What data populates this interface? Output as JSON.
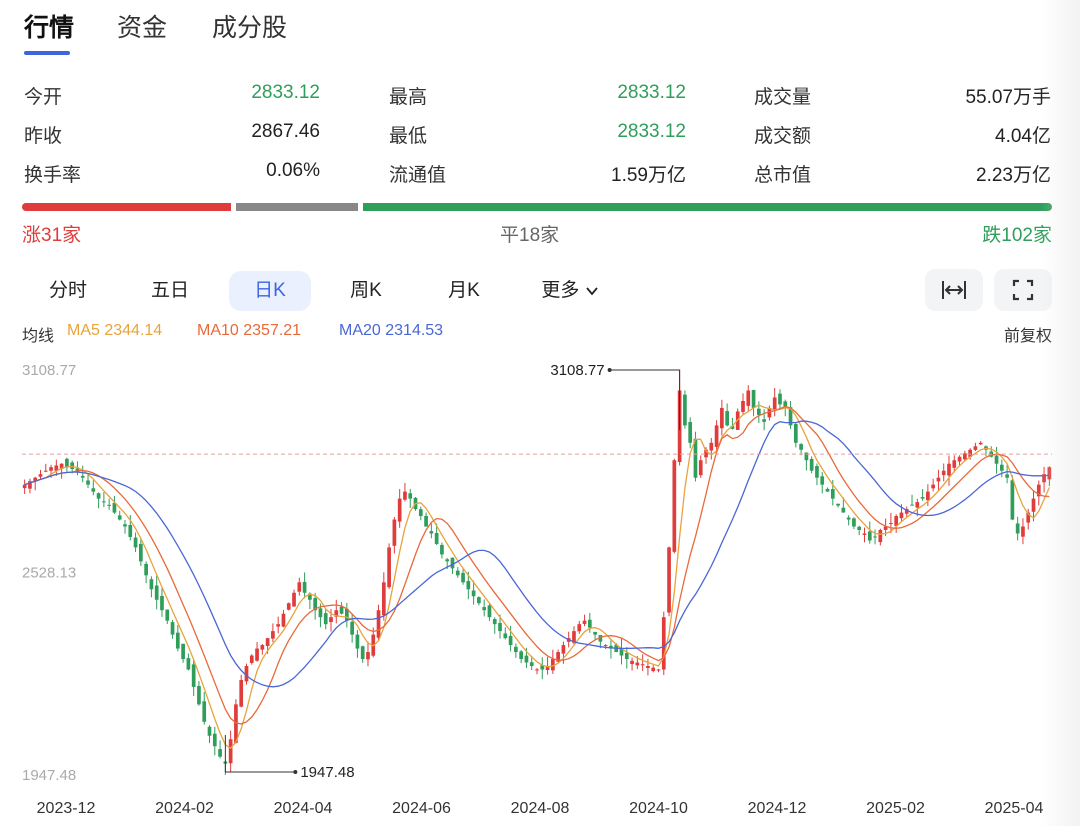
{
  "tabs": [
    {
      "label": "行情"
    },
    {
      "label": "资金"
    },
    {
      "label": "成分股"
    }
  ],
  "stats": {
    "open": {
      "label": "今开",
      "value": "2833.12"
    },
    "prev_close": {
      "label": "昨收",
      "value": "2867.46"
    },
    "turnover_rate": {
      "label": "换手率",
      "value": "0.06%"
    },
    "high": {
      "label": "最高",
      "value": "2833.12"
    },
    "low": {
      "label": "最低",
      "value": "2833.12"
    },
    "float_cap": {
      "label": "流通值",
      "value": "1.59万亿"
    },
    "volume": {
      "label": "成交量",
      "value": "55.07万手"
    },
    "amount": {
      "label": "成交额",
      "value": "4.04亿"
    },
    "total_cap": {
      "label": "总市值",
      "value": "2.23万亿"
    }
  },
  "breadth": {
    "up": "涨31家",
    "flat": "平18家",
    "down": "跌102家",
    "up_count": 31,
    "flat_count": 18,
    "down_count": 102
  },
  "periods": [
    {
      "label": "分时"
    },
    {
      "label": "五日"
    },
    {
      "label": "日K"
    },
    {
      "label": "周K"
    },
    {
      "label": "月K"
    },
    {
      "label": "更多"
    }
  ],
  "icons": {
    "expand": "horizontal-expand-icon",
    "fullscreen": "fullscreen-icon",
    "more": "chevron-down-icon"
  },
  "ma": {
    "title": "均线",
    "ma5": "MA5 2344.14",
    "ma10": "MA10 2357.21",
    "ma20": "MA20 2314.53",
    "adjust": "前复权"
  },
  "colors": {
    "up": "#e03c3c",
    "down": "#2f9e5b",
    "flat": "#888888",
    "accent": "#3b66e0",
    "ma5": "#e8a33d",
    "ma10": "#e86a3a",
    "ma20": "#4a67d6"
  },
  "chart_data": {
    "type": "candlestick",
    "y_axis_labels": [
      "3108.77",
      "2528.13",
      "1947.48"
    ],
    "ylim": [
      1947.48,
      3108.77
    ],
    "x_axis_labels": [
      "2023-12",
      "2024-02",
      "2024-04",
      "2024-06",
      "2024-08",
      "2024-10",
      "2024-12",
      "2025-02",
      "2025-04"
    ],
    "max_annotation": "3108.77",
    "min_annotation": "1947.48",
    "reference_line": 2867.46,
    "close_approx": [
      2780,
      2790,
      2800,
      2810,
      2820,
      2830,
      2835,
      2840,
      2830,
      2825,
      2815,
      2800,
      2780,
      2760,
      2740,
      2730,
      2720,
      2700,
      2680,
      2660,
      2630,
      2600,
      2560,
      2520,
      2480,
      2450,
      2420,
      2390,
      2350,
      2310,
      2280,
      2250,
      2200,
      2150,
      2100,
      2060,
      2030,
      2000,
      1980,
      2050,
      2150,
      2220,
      2260,
      2290,
      2310,
      2320,
      2340,
      2360,
      2380,
      2410,
      2440,
      2470,
      2500,
      2470,
      2450,
      2420,
      2400,
      2380,
      2400,
      2420,
      2410,
      2390,
      2350,
      2310,
      2280,
      2300,
      2350,
      2420,
      2500,
      2600,
      2680,
      2740,
      2760,
      2740,
      2710,
      2690,
      2660,
      2640,
      2610,
      2580,
      2560,
      2540,
      2520,
      2500,
      2480,
      2460,
      2440,
      2420,
      2400,
      2380,
      2360,
      2340,
      2320,
      2300,
      2280,
      2270,
      2260,
      2250,
      2250,
      2260,
      2280,
      2300,
      2320,
      2340,
      2360,
      2380,
      2390,
      2370,
      2350,
      2330,
      2320,
      2310,
      2300,
      2290,
      2280,
      2275,
      2270,
      2265,
      2260,
      2255,
      2250,
      2400,
      2600,
      2850,
      3050,
      2950,
      2900,
      2800,
      2850,
      2880,
      2900,
      2950,
      3000,
      2950,
      2940,
      2990,
      3020,
      3050,
      3000,
      2980,
      2960,
      3000,
      3030,
      3010,
      3000,
      2950,
      2900,
      2880,
      2850,
      2820,
      2800,
      2780,
      2760,
      2740,
      2720,
      2700,
      2680,
      2660,
      2650,
      2640,
      2620,
      2630,
      2650,
      2660,
      2670,
      2690,
      2700,
      2710,
      2720,
      2730,
      2740,
      2760,
      2780,
      2800,
      2820,
      2840,
      2850,
      2860,
      2870,
      2880,
      2890,
      2900,
      2880,
      2860,
      2840,
      2820,
      2800,
      2680,
      2640,
      2660,
      2700,
      2740,
      2780,
      2810,
      2830
    ]
  }
}
